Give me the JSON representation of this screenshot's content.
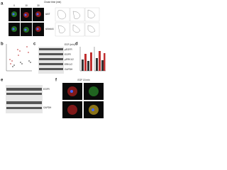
{
  "panels": [
    {
      "label": "a",
      "title": "Chase time (min)",
      "columns": [
        "0",
        "10",
        "30"
      ],
      "rows": [
        "siNT",
        "siNedd4"
      ]
    },
    {
      "label": "b"
    },
    {
      "label": "c",
      "rows": [
        "EGF (min)",
        "pEGFR",
        "EGFR",
        "pERK1/2",
        "ERK1/2",
        "GAPDH"
      ]
    },
    {
      "label": "d"
    },
    {
      "label": "e",
      "rows": [
        "EGFR",
        "GAPDH"
      ]
    },
    {
      "label": "f",
      "title": "EGF 15 min"
    }
  ]
}
